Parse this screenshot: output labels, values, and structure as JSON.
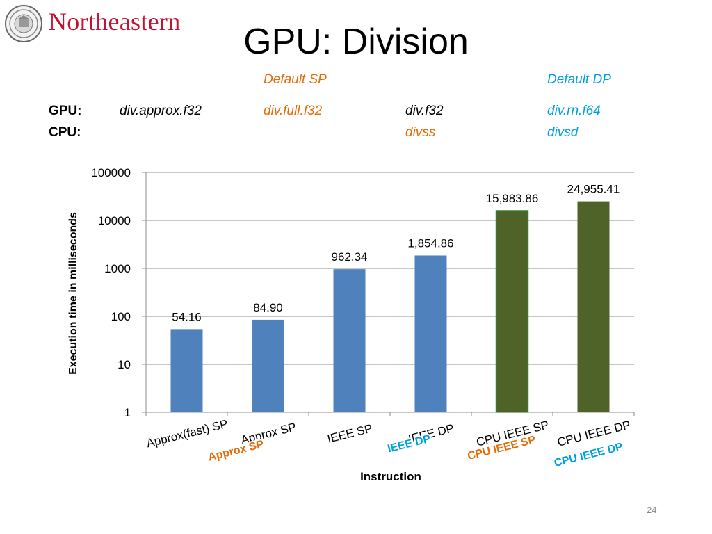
{
  "header": {
    "brand": "Northeastern",
    "title": "GPU: Division"
  },
  "defaults": {
    "sp": "Default SP",
    "dp": "Default DP"
  },
  "instruction_table": {
    "gpu_label": "GPU:",
    "cpu_label": "CPU:",
    "gpu": [
      "div.approx.f32",
      "div.full.f32",
      "div.f32",
      "div.rn.f64"
    ],
    "cpu": [
      "divss",
      "divsd"
    ]
  },
  "overlay_labels": [
    "Approx SP",
    "IEEE DP",
    "CPU IEEE SP",
    "CPU IEEE DP"
  ],
  "colors": {
    "brand": "#c41230",
    "orange": "#e36c09",
    "blue": "#00a0e0",
    "gpu_bar": "#4f81bd",
    "cpu_bar": "#4f6228"
  },
  "chart_data": {
    "type": "bar",
    "log_scale": true,
    "categories": [
      "Approx(fast) SP",
      "Approx SP",
      "IEEE SP",
      "IEEE DP",
      "CPU IEEE SP",
      "CPU IEEE DP"
    ],
    "values": [
      54.16,
      84.9,
      962.34,
      1854.86,
      15983.86,
      24955.41
    ],
    "data_labels": [
      "54.16",
      "84.90",
      "962.34",
      "1,854.86",
      "15,983.86",
      "24,955.41"
    ],
    "ylim": [
      1,
      100000
    ],
    "yticks": [
      "1",
      "10",
      "100",
      "1000",
      "10000",
      "100000"
    ],
    "xlabel": "Instruction",
    "ylabel": "Execution time in milliseconds",
    "grid": true
  },
  "slide_number": "24"
}
